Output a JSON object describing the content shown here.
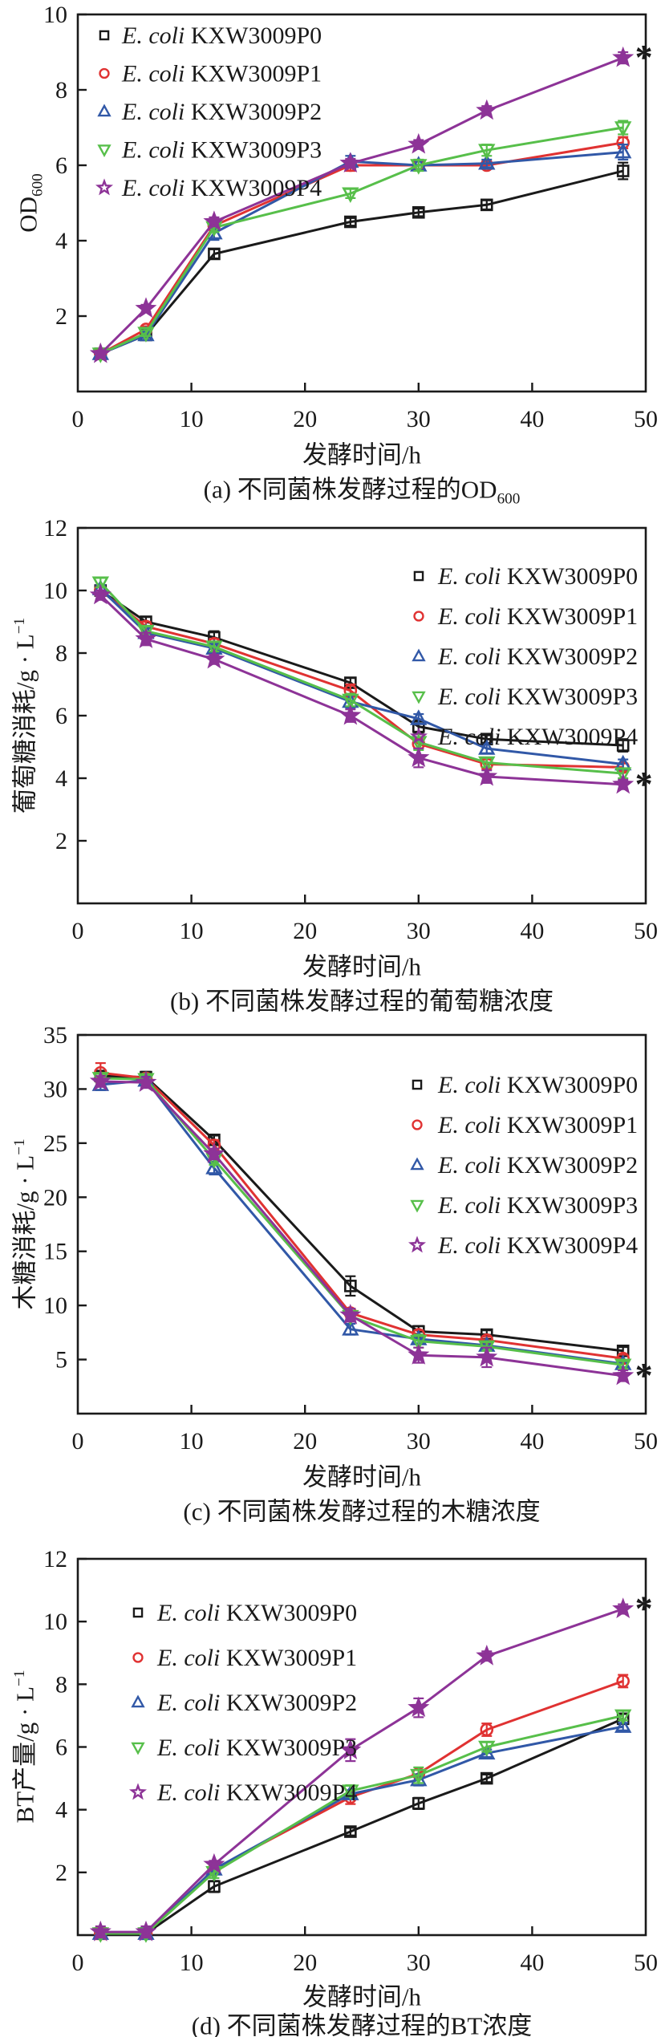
{
  "figure": {
    "x_axis_label": "发酵时间/h",
    "significance_marker": "*",
    "strains": [
      {
        "label_italic": "E. coli",
        "label_rest": "KXW3009P0",
        "color": "#1a1a1a",
        "marker": "square"
      },
      {
        "label_italic": "E. coli",
        "label_rest": "KXW3009P1",
        "color": "#e03232",
        "marker": "circle"
      },
      {
        "label_italic": "E. coli",
        "label_rest": "KXW3009P2",
        "color": "#3158a7",
        "marker": "triangle-up"
      },
      {
        "label_italic": "E. coli",
        "label_rest": "KXW3009P3",
        "color": "#57bf4a",
        "marker": "triangle-down"
      },
      {
        "label_italic": "E. coli",
        "label_rest": "KXW3009P4",
        "color": "#8d3397",
        "marker": "star"
      }
    ]
  },
  "chart_data": [
    {
      "panel": "a",
      "type": "line",
      "xlabel": "发酵时间/h",
      "caption": {
        "text": "(a) 不同菌株发酵过程的OD",
        "sub": "600"
      },
      "ylabel": {
        "text": "OD",
        "sub": "600"
      },
      "xlim": [
        0,
        50
      ],
      "xticks": [
        0,
        10,
        20,
        30,
        40,
        50
      ],
      "ylim": [
        0,
        10
      ],
      "yticks": [
        2,
        4,
        6,
        8,
        10
      ],
      "x": [
        2,
        6,
        12,
        24,
        30,
        36,
        48
      ],
      "legend_position": "top-left",
      "series": [
        {
          "name": "KXW3009P0",
          "values": [
            1.0,
            1.5,
            3.65,
            4.5,
            4.75,
            4.95,
            5.85
          ],
          "errors": [
            0.06,
            0.06,
            0.12,
            0.1,
            0.1,
            0.12,
            0.22
          ]
        },
        {
          "name": "KXW3009P1",
          "values": [
            1.0,
            1.65,
            4.4,
            6.0,
            6.0,
            6.0,
            6.6
          ],
          "errors": [
            0.06,
            0.08,
            0.12,
            0.15,
            0.1,
            0.1,
            0.15
          ]
        },
        {
          "name": "KXW3009P2",
          "values": [
            1.0,
            1.5,
            4.2,
            6.1,
            6.0,
            6.05,
            6.35
          ],
          "errors": [
            0.06,
            0.08,
            0.18,
            0.15,
            0.12,
            0.1,
            0.2
          ]
        },
        {
          "name": "KXW3009P3",
          "values": [
            1.0,
            1.55,
            4.35,
            5.25,
            6.0,
            6.4,
            7.0
          ],
          "errors": [
            0.06,
            0.08,
            0.12,
            0.12,
            0.15,
            0.15,
            0.18
          ]
        },
        {
          "name": "KXW3009P4",
          "values": [
            1.0,
            2.2,
            4.5,
            6.05,
            6.55,
            7.45,
            8.85
          ],
          "errors": [
            0.06,
            0.1,
            0.12,
            0.12,
            0.12,
            0.12,
            0.15
          ]
        }
      ],
      "annotation": {
        "text": "*",
        "series_index": 4,
        "point_index": 6
      }
    },
    {
      "panel": "b",
      "type": "line",
      "xlabel": "发酵时间/h",
      "caption": {
        "text": "(b) 不同菌株发酵过程的葡萄糖浓度"
      },
      "ylabel": {
        "text": "葡萄糖消耗/g · L",
        "sup": "−1"
      },
      "xlim": [
        0,
        50
      ],
      "xticks": [
        0,
        10,
        20,
        30,
        40,
        50
      ],
      "ylim": [
        0,
        12
      ],
      "yticks": [
        2,
        4,
        6,
        8,
        10,
        12
      ],
      "x": [
        2,
        6,
        12,
        24,
        30,
        36,
        48
      ],
      "legend_position": "top-right",
      "series": [
        {
          "name": "KXW3009P0",
          "values": [
            10.0,
            9.0,
            8.5,
            7.05,
            5.65,
            5.25,
            5.05
          ],
          "errors": [
            0.15,
            0.15,
            0.2,
            0.15,
            0.2,
            0.12,
            0.2
          ]
        },
        {
          "name": "KXW3009P1",
          "values": [
            10.0,
            8.85,
            8.3,
            6.8,
            5.1,
            4.45,
            4.35
          ],
          "errors": [
            0.12,
            0.15,
            0.15,
            0.2,
            0.15,
            0.15,
            0.12
          ]
        },
        {
          "name": "KXW3009P2",
          "values": [
            10.05,
            8.65,
            8.15,
            6.45,
            5.9,
            4.95,
            4.45
          ],
          "errors": [
            0.12,
            0.15,
            0.15,
            0.2,
            0.15,
            0.15,
            0.15
          ]
        },
        {
          "name": "KXW3009P3",
          "values": [
            10.25,
            8.7,
            8.2,
            6.5,
            5.15,
            4.5,
            4.15
          ],
          "errors": [
            0.15,
            0.15,
            0.15,
            0.2,
            0.25,
            0.15,
            0.15
          ]
        },
        {
          "name": "KXW3009P4",
          "values": [
            9.85,
            8.45,
            7.8,
            6.0,
            4.65,
            4.05,
            3.8
          ],
          "errors": [
            0.15,
            0.2,
            0.15,
            0.2,
            0.3,
            0.2,
            0.15
          ]
        }
      ],
      "annotation": {
        "text": "*",
        "series_index": 4,
        "point_index": 6
      }
    },
    {
      "panel": "c",
      "type": "line",
      "xlabel": "发酵时间/h",
      "caption": {
        "text": "(c) 不同菌株发酵过程的木糖浓度"
      },
      "ylabel": {
        "text": "木糖消耗/g · L",
        "sup": "−1"
      },
      "xlim": [
        0,
        50
      ],
      "xticks": [
        0,
        10,
        20,
        30,
        40,
        50
      ],
      "ylim": [
        0,
        35
      ],
      "yticks": [
        5,
        10,
        15,
        20,
        25,
        30,
        35
      ],
      "x": [
        2,
        6,
        12,
        24,
        30,
        36,
        48
      ],
      "legend_position": "top-right",
      "series": [
        {
          "name": "KXW3009P0",
          "values": [
            31.2,
            31.1,
            25.3,
            11.8,
            7.6,
            7.3,
            5.8
          ],
          "errors": [
            0.4,
            0.5,
            0.4,
            0.9,
            0.5,
            0.4,
            0.35
          ]
        },
        {
          "name": "KXW3009P1",
          "values": [
            31.5,
            31.0,
            24.8,
            9.3,
            7.3,
            6.8,
            5.1
          ],
          "errors": [
            0.9,
            0.4,
            0.5,
            0.4,
            0.4,
            0.3,
            0.35
          ]
        },
        {
          "name": "KXW3009P2",
          "values": [
            30.4,
            30.8,
            22.7,
            7.8,
            6.9,
            6.3,
            4.6
          ],
          "errors": [
            0.5,
            0.4,
            0.6,
            0.5,
            0.4,
            0.3,
            0.3
          ]
        },
        {
          "name": "KXW3009P3",
          "values": [
            31.0,
            30.9,
            23.5,
            9.0,
            6.7,
            6.2,
            4.5
          ],
          "errors": [
            0.4,
            0.4,
            0.5,
            0.5,
            0.6,
            0.4,
            0.35
          ]
        },
        {
          "name": "KXW3009P4",
          "values": [
            30.7,
            30.6,
            24.0,
            9.1,
            5.4,
            5.2,
            3.5
          ],
          "errors": [
            0.5,
            0.5,
            0.5,
            0.6,
            0.7,
            0.9,
            0.5
          ]
        }
      ],
      "annotation": {
        "text": "*",
        "series_index": 4,
        "point_index": 6
      }
    },
    {
      "panel": "d",
      "type": "line",
      "xlabel": "发酵时间/h",
      "caption": {
        "text": "(d) 不同菌株发酵过程的BT浓度"
      },
      "ylabel": {
        "text": "BT产量/g · L",
        "sup": "−1"
      },
      "xlim": [
        0,
        50
      ],
      "xticks": [
        0,
        10,
        20,
        30,
        40,
        50
      ],
      "ylim": [
        0,
        12
      ],
      "yticks": [
        2,
        4,
        6,
        8,
        10,
        12
      ],
      "x": [
        2,
        6,
        12,
        24,
        30,
        36,
        48
      ],
      "legend_position": "top-left",
      "series": [
        {
          "name": "KXW3009P0",
          "values": [
            0.05,
            0.05,
            1.55,
            3.3,
            4.2,
            5.0,
            6.9
          ],
          "errors": [
            0.12,
            0.12,
            0.18,
            0.12,
            0.18,
            0.12,
            0.15
          ]
        },
        {
          "name": "KXW3009P1",
          "values": [
            0.05,
            0.05,
            2.1,
            4.4,
            5.15,
            6.55,
            8.1
          ],
          "errors": [
            0.18,
            0.12,
            0.12,
            0.22,
            0.12,
            0.2,
            0.2
          ]
        },
        {
          "name": "KXW3009P2",
          "values": [
            0.05,
            0.05,
            2.1,
            4.5,
            4.95,
            5.8,
            6.65
          ],
          "errors": [
            0.12,
            0.18,
            0.12,
            0.12,
            0.18,
            0.12,
            0.12
          ]
        },
        {
          "name": "KXW3009P3",
          "values": [
            0.05,
            0.05,
            2.0,
            4.6,
            5.1,
            6.0,
            7.0
          ],
          "errors": [
            0.12,
            0.12,
            0.18,
            0.18,
            0.25,
            0.15,
            0.15
          ]
        },
        {
          "name": "KXW3009P4",
          "values": [
            0.1,
            0.1,
            2.25,
            5.9,
            7.25,
            8.9,
            10.4
          ],
          "errors": [
            0.18,
            0.18,
            0.12,
            0.35,
            0.3,
            0.15,
            0.15
          ]
        }
      ],
      "annotation": {
        "text": "*",
        "series_index": 4,
        "point_index": 6
      }
    }
  ]
}
